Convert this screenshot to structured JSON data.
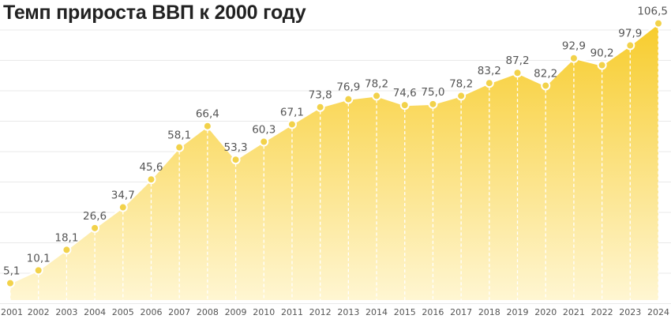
{
  "title": "Темп прироста ВВП к 2000 году",
  "colors": {
    "area_top": "#f7cc2c",
    "area_bottom": "#fff6d2",
    "point": "#f2d24a",
    "grid": "#e9e9e9"
  },
  "chart_data": {
    "type": "area",
    "title": "Темп прироста ВВП к 2000 году",
    "categories": [
      "2001",
      "2002",
      "2003",
      "2004",
      "2005",
      "2006",
      "2007",
      "2008",
      "2009",
      "2010",
      "2011",
      "2012",
      "2013",
      "2014",
      "2015",
      "2016",
      "2017",
      "2018",
      "2019",
      "2020",
      "2021",
      "2022",
      "2023",
      "2024"
    ],
    "values": [
      5.1,
      10.1,
      18.1,
      26.6,
      34.7,
      45.6,
      58.1,
      66.4,
      53.3,
      60.3,
      67.1,
      73.8,
      76.9,
      78.2,
      74.6,
      75.0,
      78.2,
      83.2,
      87.2,
      82.2,
      92.9,
      90.2,
      97.9,
      106.5
    ],
    "labels": [
      "5,1",
      "10,1",
      "18,1",
      "26,6",
      "34,7",
      "45,6",
      "58,1",
      "66,4",
      "53,3",
      "60,3",
      "67,1",
      "73,8",
      "76,9",
      "78,2",
      "74,6",
      "75,0",
      "78,2",
      "83,2",
      "87,2",
      "82,2",
      "92,9",
      "90,2",
      "97,9",
      "106,5"
    ],
    "ylim": [
      -1.5,
      107
    ],
    "grid": true,
    "legend": false
  }
}
